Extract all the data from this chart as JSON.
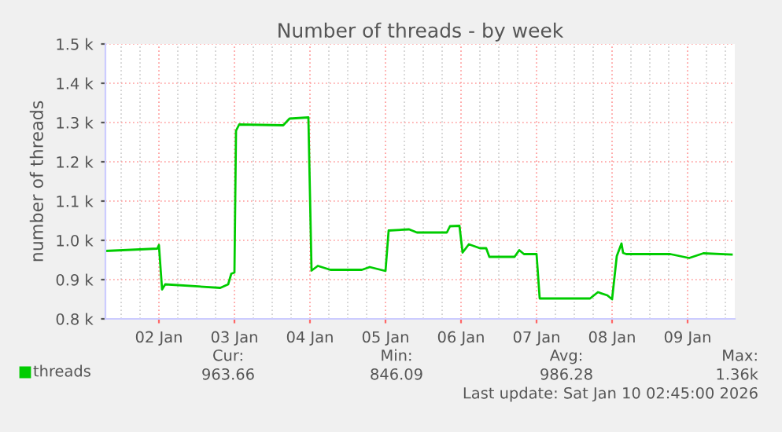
{
  "chart_data": {
    "type": "line",
    "title": "Number of threads - by week",
    "ylabel": "number of threads",
    "x": [
      "2026-01-01T07:00",
      "2026-01-01T23:30",
      "2026-01-02T00:00",
      "2026-01-02T01:00",
      "2026-01-02T02:00",
      "2026-01-02T19:30",
      "2026-01-02T22:00",
      "2026-01-02T23:00",
      "2026-01-03T00:00",
      "2026-01-03T00:30",
      "2026-01-03T01:30",
      "2026-01-03T15:30",
      "2026-01-03T17:30",
      "2026-01-03T23:30",
      "2026-01-04T00:30",
      "2026-01-04T02:30",
      "2026-01-04T06:30",
      "2026-01-04T16:30",
      "2026-01-04T19:00",
      "2026-01-05T00:00",
      "2026-01-05T01:00",
      "2026-01-05T07:30",
      "2026-01-05T10:00",
      "2026-01-05T19:30",
      "2026-01-05T20:30",
      "2026-01-05T23:30",
      "2026-01-06T00:30",
      "2026-01-06T02:30",
      "2026-01-06T06:00",
      "2026-01-06T08:00",
      "2026-01-06T09:00",
      "2026-01-06T17:00",
      "2026-01-06T18:30",
      "2026-01-06T20:00",
      "2026-01-07T00:00",
      "2026-01-07T01:00",
      "2026-01-07T17:00",
      "2026-01-07T19:30",
      "2026-01-07T22:30",
      "2026-01-08T00:00",
      "2026-01-08T01:30",
      "2026-01-08T03:00",
      "2026-01-08T03:30",
      "2026-01-08T04:30",
      "2026-01-08T18:30",
      "2026-01-09T00:30",
      "2026-01-09T05:00",
      "2026-01-09T14:00"
    ],
    "series": [
      {
        "name": "threads",
        "color": "#00cc00",
        "values": [
          973,
          979,
          988,
          875,
          888,
          879,
          888,
          915,
          918,
          1279,
          1295,
          1293,
          1310,
          1313,
          923,
          935,
          925,
          925,
          932,
          922,
          1025,
          1028,
          1020,
          1020,
          1036,
          1037,
          969,
          990,
          980,
          980,
          958,
          958,
          975,
          965,
          965,
          852,
          852,
          868,
          860,
          850,
          960,
          992,
          968,
          965,
          965,
          955,
          967,
          964
        ]
      }
    ],
    "xlim": [
      "2026-01-01T07:00",
      "2026-01-09T15:00"
    ],
    "xticks": [
      {
        "value": "2026-01-02",
        "label": "02 Jan"
      },
      {
        "value": "2026-01-03",
        "label": "03 Jan"
      },
      {
        "value": "2026-01-04",
        "label": "04 Jan"
      },
      {
        "value": "2026-01-05",
        "label": "05 Jan"
      },
      {
        "value": "2026-01-06",
        "label": "06 Jan"
      },
      {
        "value": "2026-01-07",
        "label": "07 Jan"
      },
      {
        "value": "2026-01-08",
        "label": "08 Jan"
      },
      {
        "value": "2026-01-09",
        "label": "09 Jan"
      }
    ],
    "ylim": [
      800,
      1500
    ],
    "yticks": [
      {
        "value": 800,
        "label": "0.8 k"
      },
      {
        "value": 900,
        "label": "0.9 k"
      },
      {
        "value": 1000,
        "label": "1.0 k"
      },
      {
        "value": 1100,
        "label": "1.1 k"
      },
      {
        "value": 1200,
        "label": "1.2 k"
      },
      {
        "value": 1300,
        "label": "1.3 k"
      },
      {
        "value": 1400,
        "label": "1.4 k"
      },
      {
        "value": 1500,
        "label": "1.5 k"
      }
    ],
    "grid": true,
    "legend": "bottom left",
    "marker": "none",
    "line_style": "solid",
    "annotations": [
      "Cur:",
      "963.66",
      "Min:",
      "846.09",
      "Avg:",
      "986.28",
      "Max:",
      "1.36k",
      "Last update: Sat Jan 10 02:45:00 2026"
    ]
  }
}
